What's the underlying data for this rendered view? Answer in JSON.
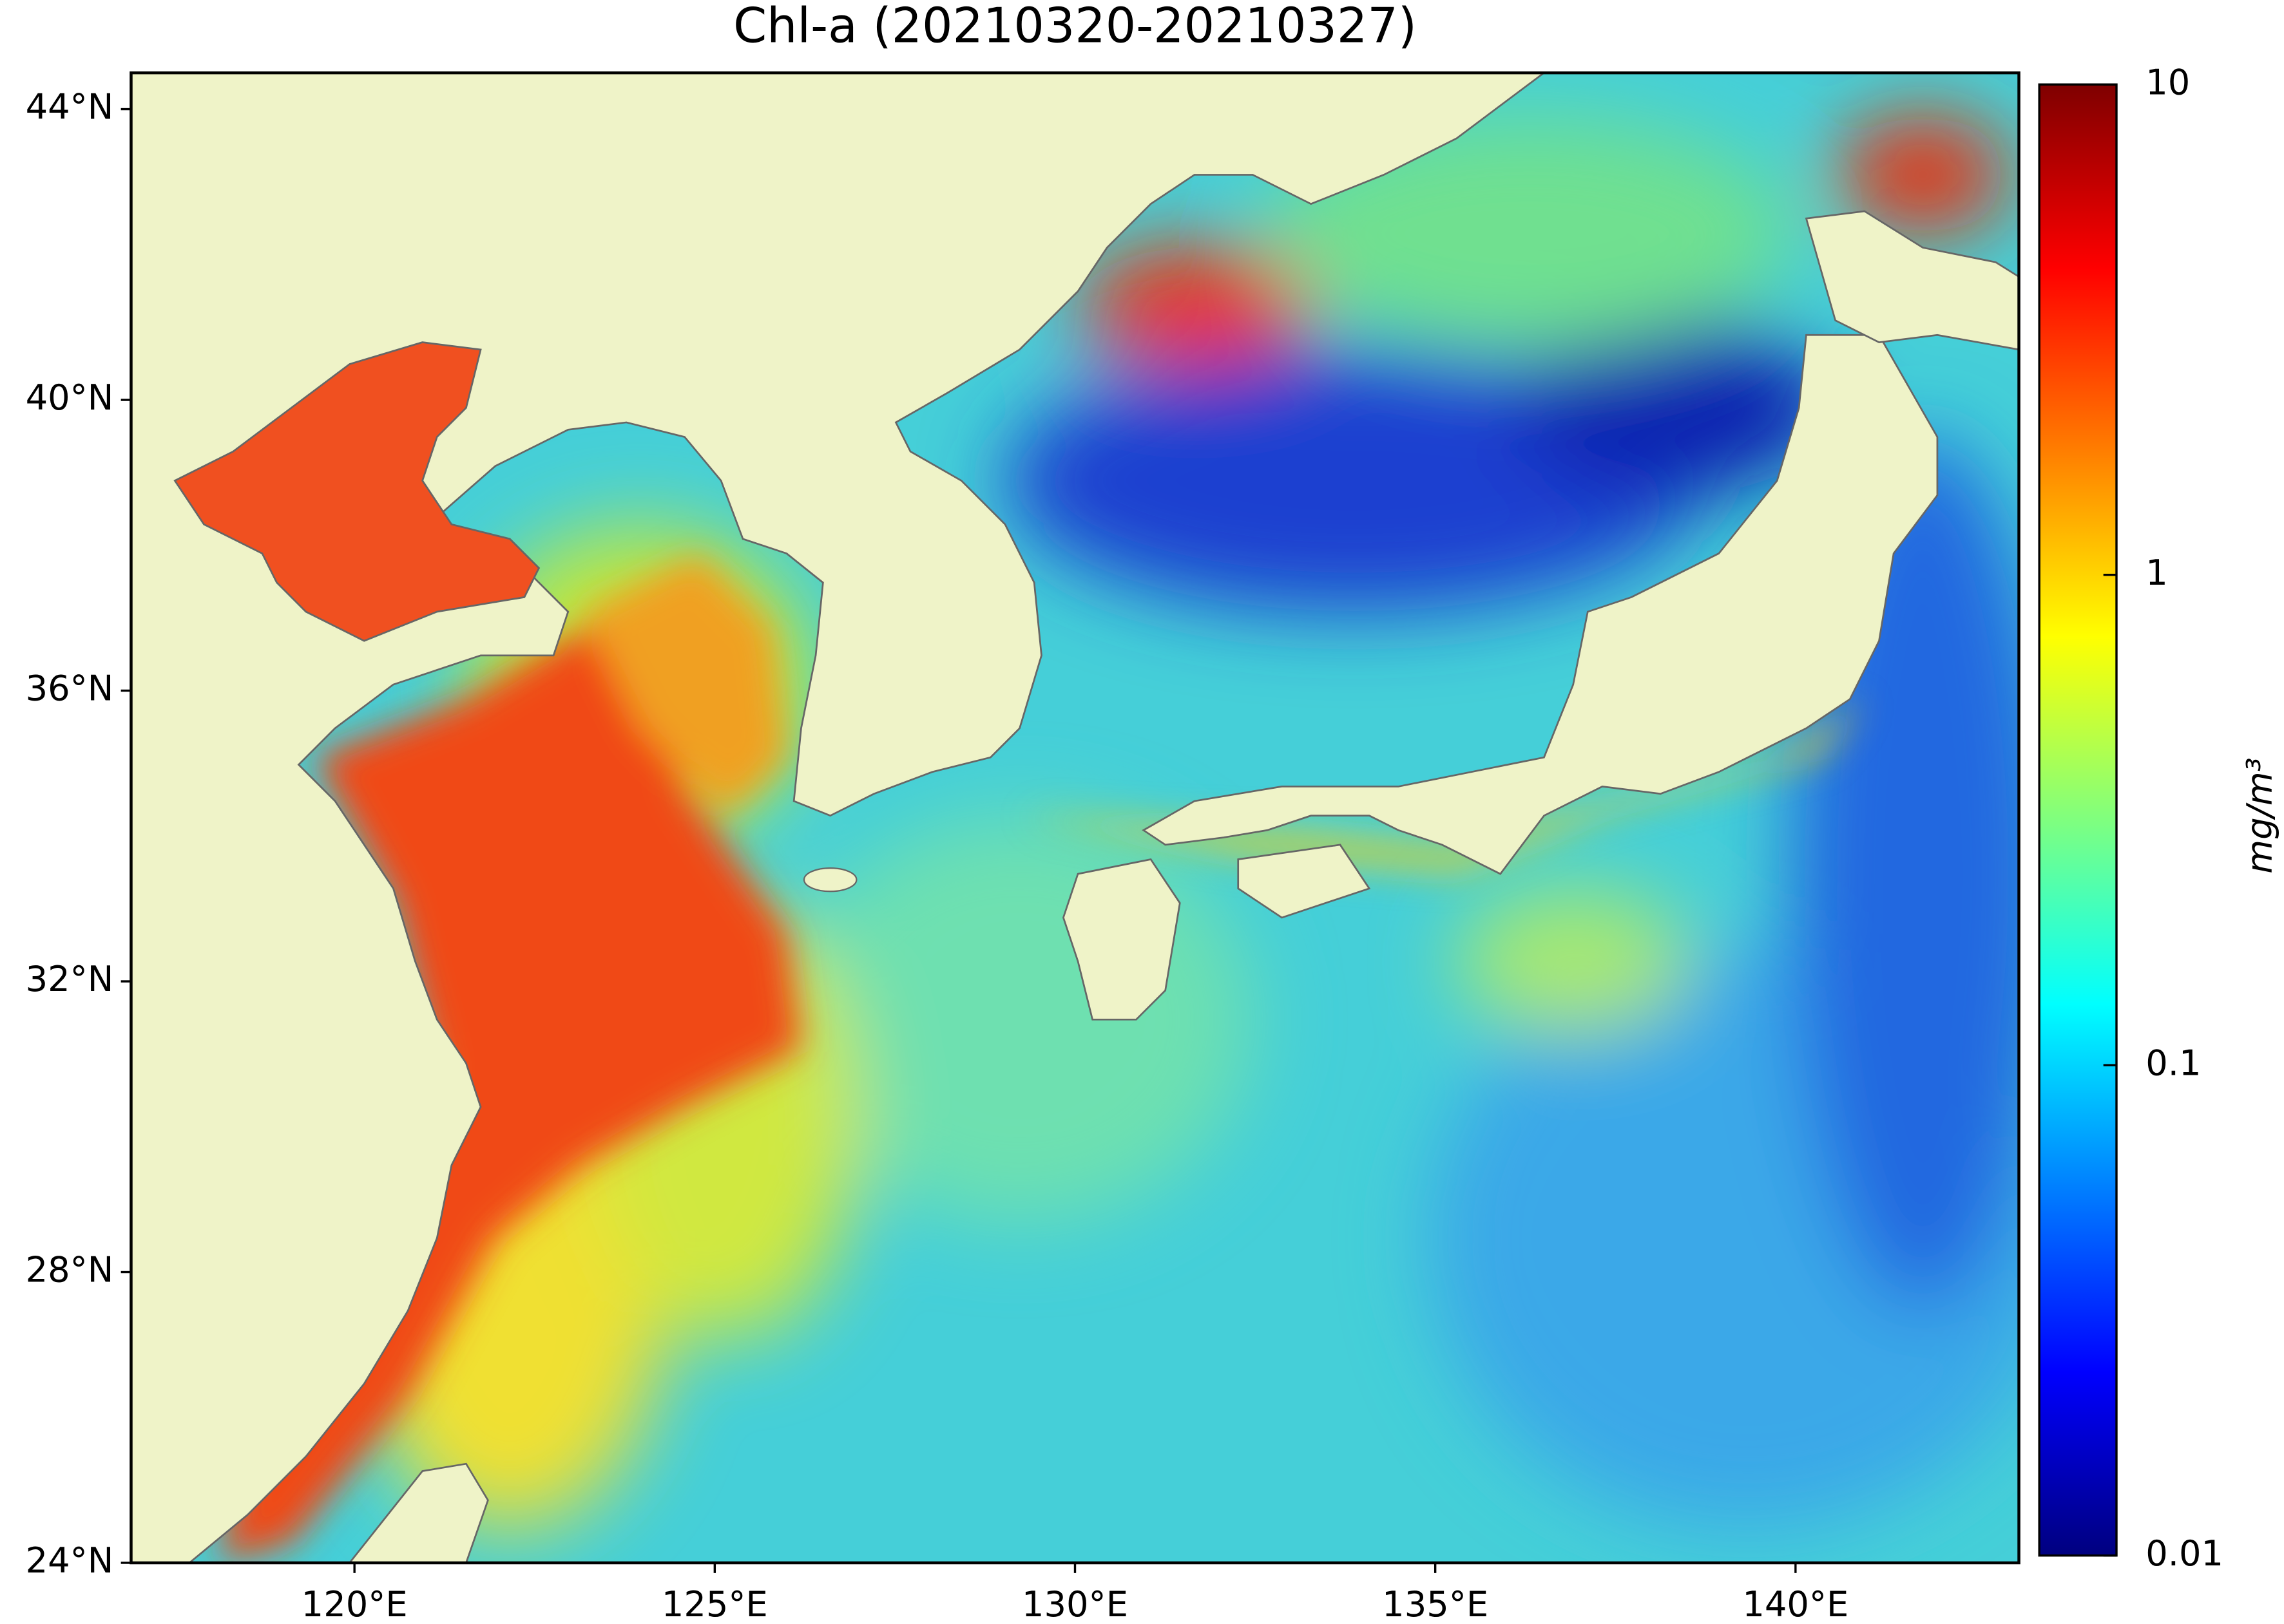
{
  "title": "Chl-a (20210320-20210327)",
  "map": {
    "xlim": [
      116.9,
      143.1
    ],
    "ylim": [
      24,
      44.5
    ],
    "xticks": [
      {
        "value": 120,
        "label": "120°E"
      },
      {
        "value": 125,
        "label": "125°E"
      },
      {
        "value": 130,
        "label": "130°E"
      },
      {
        "value": 135,
        "label": "135°E"
      },
      {
        "value": 140,
        "label": "140°E"
      }
    ],
    "yticks": [
      {
        "value": 24,
        "label": "24°N"
      },
      {
        "value": 28,
        "label": "28°N"
      },
      {
        "value": 32,
        "label": "32°N"
      },
      {
        "value": 36,
        "label": "36°N"
      },
      {
        "value": 40,
        "label": "40°N"
      },
      {
        "value": 44,
        "label": "44°N"
      }
    ]
  },
  "colorbar": {
    "label": "mg/m³",
    "scale": "log",
    "range": [
      0.01,
      10
    ],
    "ticks": [
      0.01,
      0.1,
      1,
      10
    ],
    "colors": [
      "#00007f",
      "#0000ff",
      "#007fff",
      "#00ffff",
      "#7fff7f",
      "#ffff00",
      "#ff7f00",
      "#ff0000",
      "#7f0000"
    ]
  }
}
